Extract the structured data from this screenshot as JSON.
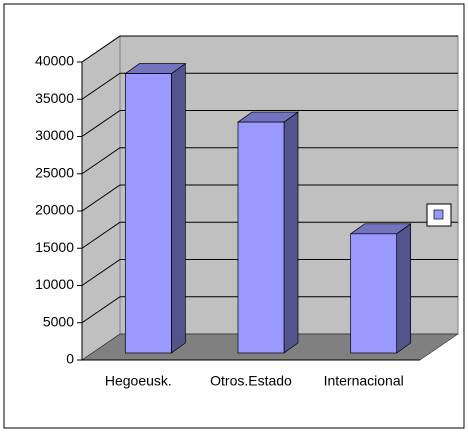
{
  "chart_data": {
    "type": "bar3d",
    "categories": [
      "Hegoeusk.",
      "Otros.Estado",
      "Internacional"
    ],
    "series": [
      {
        "color": "#9999ff",
        "values": [
          37500,
          31000,
          16000
        ]
      }
    ],
    "ylim": [
      0,
      40000
    ],
    "yticks": [
      0,
      5000,
      10000,
      15000,
      20000,
      25000,
      30000,
      35000,
      40000
    ],
    "grid": true,
    "legend": "right"
  }
}
